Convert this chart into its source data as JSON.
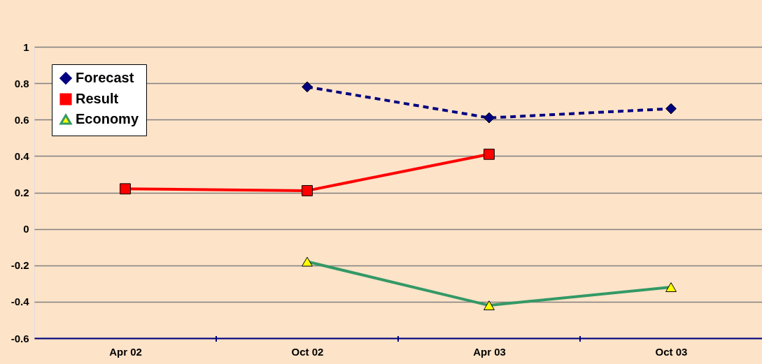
{
  "chart_data": {
    "type": "line",
    "categories": [
      "Apr 02",
      "Oct 02",
      "Apr 03",
      "Oct 03"
    ],
    "series": [
      {
        "name": "Forecast",
        "color": "#000080",
        "values": [
          null,
          0.78,
          0.61,
          0.66
        ],
        "marker": "diamond",
        "line_style": "dashed"
      },
      {
        "name": "Result",
        "color": "#ff0000",
        "values": [
          0.22,
          0.21,
          0.41,
          null
        ],
        "marker": "square",
        "line_style": "solid"
      },
      {
        "name": "Economy",
        "color": "#339966",
        "values": [
          null,
          -0.18,
          -0.42,
          -0.32
        ],
        "marker": "triangle",
        "line_style": "solid"
      }
    ],
    "ylim": [
      -0.6,
      1
    ],
    "yticks": [
      -0.6,
      -0.4,
      -0.2,
      0,
      0.2,
      0.4,
      0.6,
      0.8,
      1
    ],
    "grid": "y",
    "legend": "top left"
  }
}
